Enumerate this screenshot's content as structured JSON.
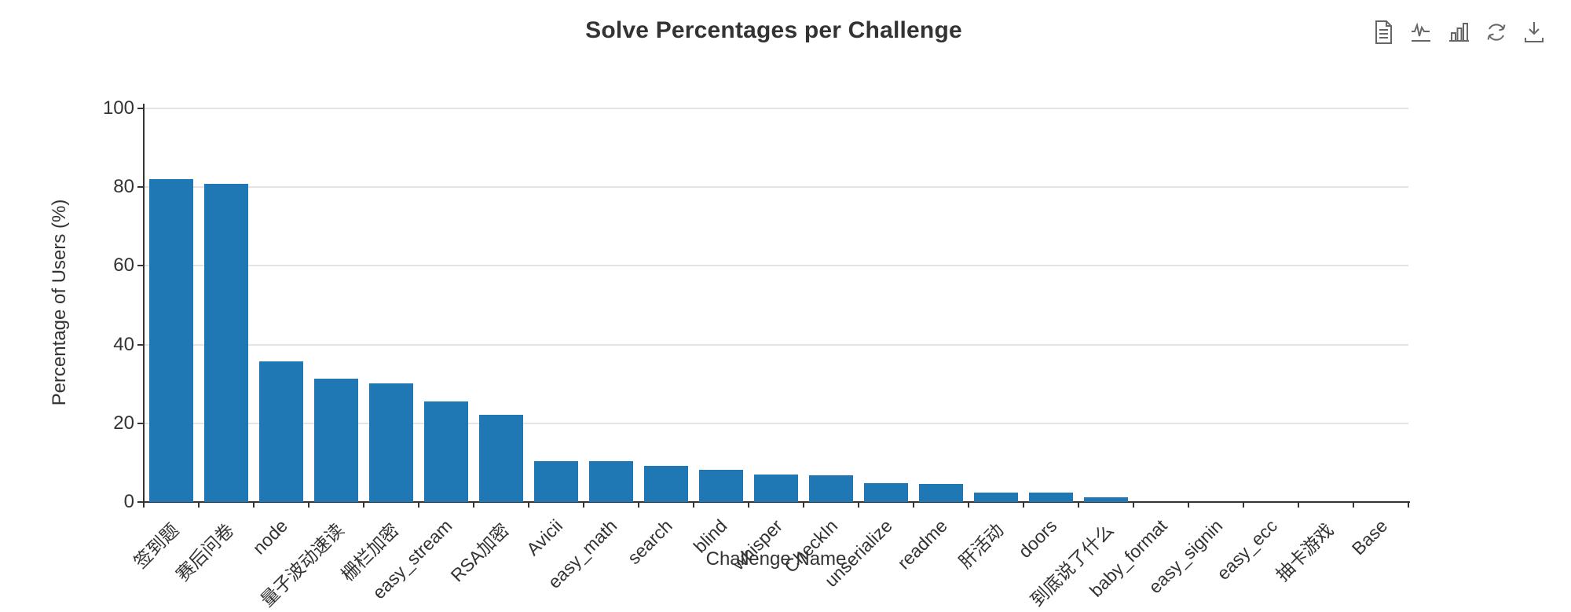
{
  "header": {
    "title": "Solve Percentages per Challenge"
  },
  "toolbar": {
    "buttons": [
      {
        "name": "data-view",
        "label": "Data View"
      },
      {
        "name": "switch-to-line-chart",
        "label": "Line Chart"
      },
      {
        "name": "switch-to-bar-chart",
        "label": "Bar Chart"
      },
      {
        "name": "restore",
        "label": "Restore"
      },
      {
        "name": "save-as-image",
        "label": "Save As Image"
      }
    ]
  },
  "colors": {
    "bar": "#1f77b4",
    "axis": "#333333",
    "grid": "#e4e4e4",
    "icon": "#666666",
    "background": "#ffffff"
  },
  "chart_data": {
    "type": "bar",
    "title": "Solve Percentages per Challenge",
    "xlabel": "Challenge Name",
    "ylabel": "Percentage of Users (%)",
    "ylim": [
      0,
      100
    ],
    "yticks": [
      0,
      20,
      40,
      60,
      80,
      100
    ],
    "grid": true,
    "legend": false,
    "bar_color": "#1f77b4",
    "categories": [
      "签到题",
      "赛后问卷",
      "node",
      "量子波动速读",
      "栅栏加密",
      "easy_stream",
      "RSA加密",
      "Avicii",
      "easy_math",
      "search",
      "blind",
      "whisper",
      "CheckIn",
      "unserialize",
      "readme",
      "肝活动",
      "doors",
      "到底说了什么",
      "baby_format",
      "easy_signin",
      "easy_ecc",
      "抽卡游戏",
      "Base"
    ],
    "values": [
      82.0,
      80.8,
      35.8,
      31.3,
      30.1,
      25.5,
      22.2,
      10.4,
      10.3,
      9.2,
      8.1,
      6.9,
      6.8,
      4.7,
      4.6,
      2.4,
      2.3,
      1.2,
      0,
      0,
      0,
      0,
      0
    ]
  }
}
